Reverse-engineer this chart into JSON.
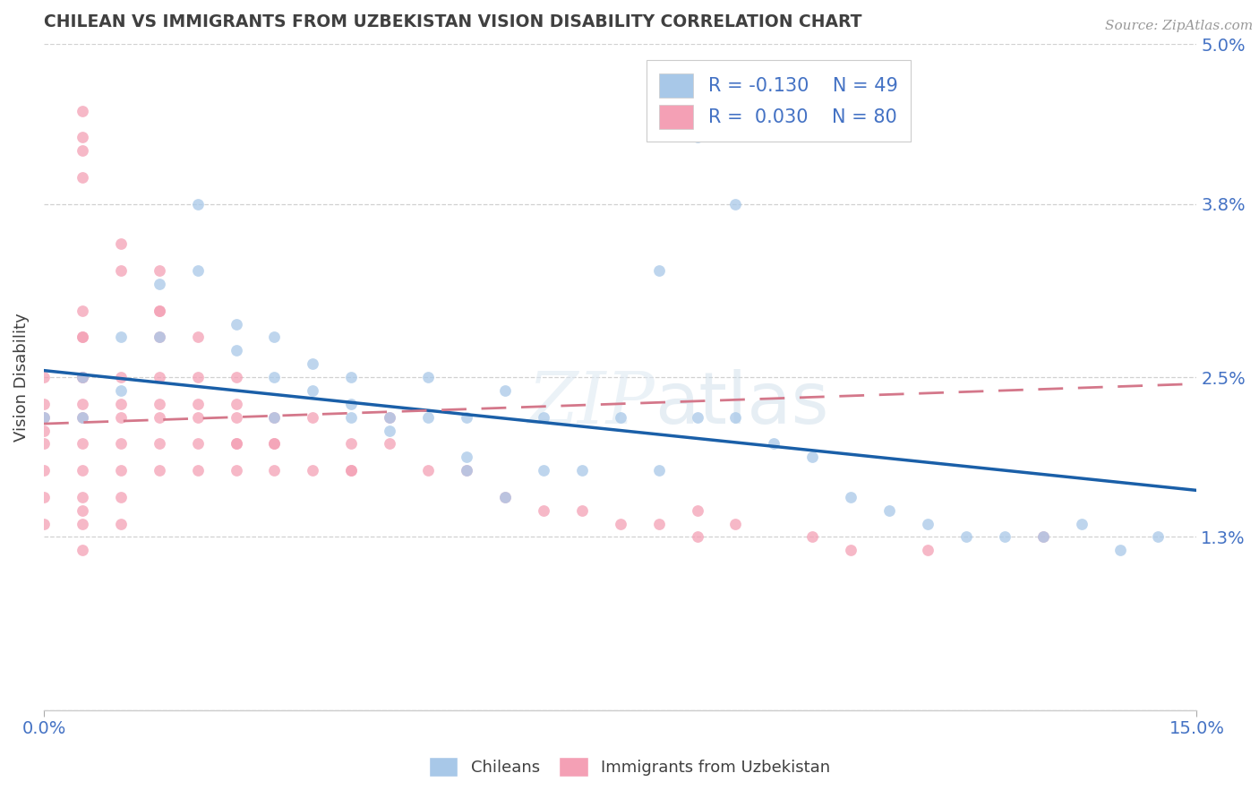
{
  "title": "CHILEAN VS IMMIGRANTS FROM UZBEKISTAN VISION DISABILITY CORRELATION CHART",
  "source": "Source: ZipAtlas.com",
  "ylabel": "Vision Disability",
  "xmin": 0.0,
  "xmax": 0.15,
  "ymin": 0.0,
  "ymax": 0.05,
  "yticks": [
    0.0,
    0.013,
    0.025,
    0.038,
    0.05
  ],
  "ytick_labels": [
    "",
    "1.3%",
    "2.5%",
    "3.8%",
    "5.0%"
  ],
  "legend_r1": "-0.130",
  "legend_n1": "49",
  "legend_r2": "0.030",
  "legend_n2": "80",
  "legend_label1": "Chileans",
  "legend_label2": "Immigrants from Uzbekistan",
  "color_blue": "#a8c8e8",
  "color_pink": "#f4a0b5",
  "line_color_blue": "#1a5fa8",
  "line_color_pink": "#d4778a",
  "background_color": "#ffffff",
  "title_color": "#404040",
  "label_color": "#4472c4",
  "chileans_x": [
    0.0,
    0.005,
    0.005,
    0.01,
    0.01,
    0.015,
    0.015,
    0.02,
    0.02,
    0.025,
    0.025,
    0.03,
    0.03,
    0.03,
    0.035,
    0.035,
    0.04,
    0.04,
    0.04,
    0.045,
    0.045,
    0.05,
    0.05,
    0.055,
    0.055,
    0.06,
    0.065,
    0.065,
    0.07,
    0.075,
    0.08,
    0.085,
    0.09,
    0.095,
    0.1,
    0.105,
    0.11,
    0.115,
    0.12,
    0.125,
    0.13,
    0.135,
    0.14,
    0.145,
    0.085,
    0.09,
    0.08,
    0.055,
    0.06
  ],
  "chileans_y": [
    0.022,
    0.025,
    0.022,
    0.028,
    0.024,
    0.032,
    0.028,
    0.038,
    0.033,
    0.027,
    0.029,
    0.028,
    0.025,
    0.022,
    0.026,
    0.024,
    0.025,
    0.023,
    0.022,
    0.021,
    0.022,
    0.025,
    0.022,
    0.022,
    0.019,
    0.024,
    0.022,
    0.018,
    0.018,
    0.022,
    0.018,
    0.022,
    0.022,
    0.02,
    0.019,
    0.016,
    0.015,
    0.014,
    0.013,
    0.013,
    0.013,
    0.014,
    0.012,
    0.013,
    0.043,
    0.038,
    0.033,
    0.018,
    0.016
  ],
  "uzbek_x": [
    0.0,
    0.0,
    0.0,
    0.0,
    0.0,
    0.0,
    0.0,
    0.0,
    0.005,
    0.005,
    0.005,
    0.005,
    0.005,
    0.005,
    0.005,
    0.005,
    0.005,
    0.005,
    0.005,
    0.005,
    0.005,
    0.01,
    0.01,
    0.01,
    0.01,
    0.01,
    0.01,
    0.01,
    0.015,
    0.015,
    0.015,
    0.015,
    0.015,
    0.015,
    0.015,
    0.02,
    0.02,
    0.02,
    0.02,
    0.02,
    0.025,
    0.025,
    0.025,
    0.025,
    0.03,
    0.03,
    0.03,
    0.035,
    0.04,
    0.04,
    0.045,
    0.045,
    0.05,
    0.055,
    0.06,
    0.065,
    0.07,
    0.075,
    0.08,
    0.085,
    0.085,
    0.09,
    0.1,
    0.105,
    0.115,
    0.13,
    0.005,
    0.005,
    0.005,
    0.005,
    0.01,
    0.01,
    0.015,
    0.015,
    0.02,
    0.025,
    0.025,
    0.03,
    0.035,
    0.04
  ],
  "uzbek_y": [
    0.023,
    0.025,
    0.022,
    0.021,
    0.02,
    0.018,
    0.016,
    0.014,
    0.025,
    0.028,
    0.03,
    0.028,
    0.025,
    0.023,
    0.022,
    0.02,
    0.018,
    0.016,
    0.015,
    0.014,
    0.012,
    0.025,
    0.023,
    0.022,
    0.02,
    0.018,
    0.016,
    0.014,
    0.03,
    0.028,
    0.025,
    0.023,
    0.022,
    0.02,
    0.018,
    0.028,
    0.025,
    0.023,
    0.02,
    0.018,
    0.025,
    0.023,
    0.02,
    0.018,
    0.022,
    0.02,
    0.018,
    0.022,
    0.02,
    0.018,
    0.022,
    0.02,
    0.018,
    0.018,
    0.016,
    0.015,
    0.015,
    0.014,
    0.014,
    0.015,
    0.013,
    0.014,
    0.013,
    0.012,
    0.012,
    0.013,
    0.04,
    0.043,
    0.045,
    0.042,
    0.035,
    0.033,
    0.033,
    0.03,
    0.022,
    0.022,
    0.02,
    0.02,
    0.018,
    0.018
  ],
  "blue_line_x": [
    0.0,
    0.15
  ],
  "blue_line_y": [
    0.0255,
    0.0165
  ],
  "pink_line_x": [
    0.0,
    0.15
  ],
  "pink_line_y": [
    0.0215,
    0.0245
  ]
}
